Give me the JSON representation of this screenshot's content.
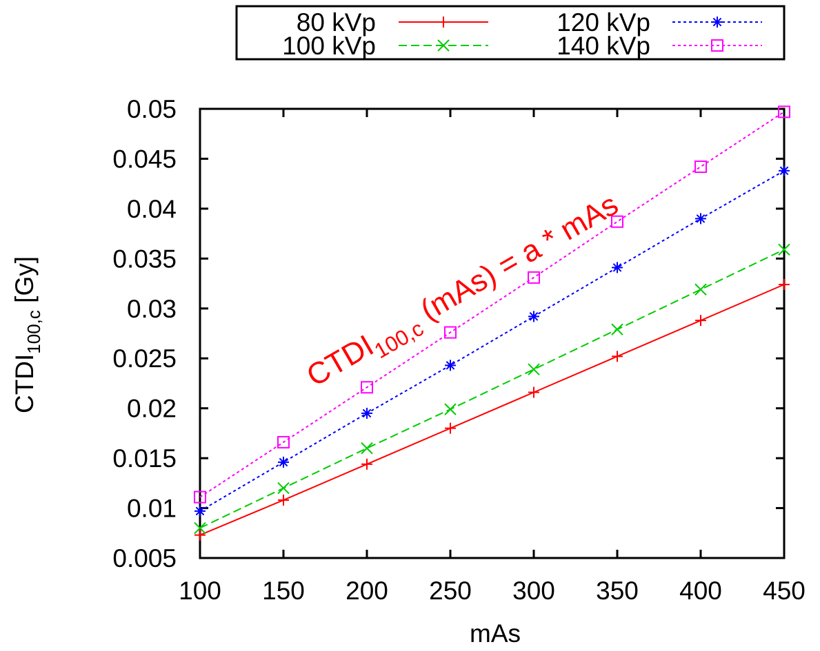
{
  "chart_data": {
    "type": "line",
    "title": "",
    "xlabel": "mAs",
    "ylabel": {
      "main": "CTDI",
      "subscript": "100,c",
      "unit": "[Gy]"
    },
    "xlim": [
      100,
      450
    ],
    "ylim": [
      0.005,
      0.05
    ],
    "xticks": [
      100,
      150,
      200,
      250,
      300,
      350,
      400,
      450
    ],
    "yticks": [
      0.005,
      0.01,
      0.015,
      0.02,
      0.025,
      0.03,
      0.035,
      0.04,
      0.045,
      0.05
    ],
    "xtick_labels": [
      "100",
      "150",
      "200",
      "250",
      "300",
      "350",
      "400",
      "450"
    ],
    "ytick_labels": [
      "0.005",
      "0.01",
      "0.015",
      "0.02",
      "0.025",
      "0.03",
      "0.035",
      "0.04",
      "0.045",
      "0.05"
    ],
    "grid": false,
    "legend_position": "top-outside",
    "x": [
      100,
      150,
      200,
      250,
      300,
      350,
      400,
      450
    ],
    "series": [
      {
        "name": "80 kVp",
        "color": "#ff0000",
        "dash": "solid",
        "marker": "plus",
        "values": [
          0.0073,
          0.0108,
          0.0144,
          0.018,
          0.0216,
          0.0252,
          0.0288,
          0.0324
        ]
      },
      {
        "name": "100 kVp",
        "color": "#00cc00",
        "dash": "dashed",
        "marker": "cross",
        "values": [
          0.008,
          0.012,
          0.016,
          0.0199,
          0.0239,
          0.0279,
          0.0319,
          0.0359
        ]
      },
      {
        "name": "120 kVp",
        "color": "#0000ff",
        "dash": "dotted",
        "marker": "asterisk",
        "values": [
          0.0097,
          0.0146,
          0.0195,
          0.0243,
          0.0292,
          0.0341,
          0.039,
          0.0438
        ]
      },
      {
        "name": "140 kVp",
        "color": "#ff00ff",
        "dash": "dotted",
        "marker": "square",
        "values": [
          0.0111,
          0.0166,
          0.0221,
          0.0276,
          0.0331,
          0.0387,
          0.0442,
          0.0497
        ]
      }
    ],
    "annotation": {
      "prefix": "CTDI",
      "subscript": "100,c",
      "suffix": " (mAs) =  a * mAs",
      "color": "#ff0000",
      "rotation_deg": -30
    }
  }
}
